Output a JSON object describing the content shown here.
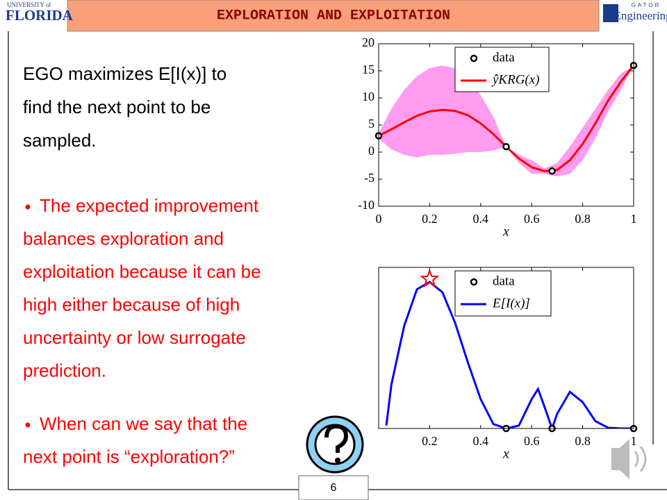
{
  "header": {
    "title": "EXPLORATION AND EXPLOITATION",
    "left_logo": [
      "UNIVERSITY of",
      "FLORIDA"
    ],
    "right_logo": [
      "GATOR",
      "Engineering"
    ]
  },
  "body": {
    "intro": [
      "EGO maximizes E[I(x)] to",
      "find the next point to be",
      "sampled."
    ],
    "bullets": [
      {
        "lines": [
          "The expected improvement",
          "balances exploration and",
          "exploitation because it can be",
          "high either because of high",
          "uncertainty or low surrogate",
          "prediction."
        ]
      },
      {
        "lines": [
          "When can we say that the",
          "next point is “exploration?”"
        ]
      }
    ]
  },
  "page_number": "6",
  "chart_data": [
    {
      "type": "line",
      "x_label": "x",
      "xlim": [
        0,
        1
      ],
      "xticks": [
        0,
        0.2,
        0.4,
        0.6,
        0.8,
        1
      ],
      "ylim": [
        -10,
        20
      ],
      "yticks": [
        -10,
        -5,
        0,
        5,
        10,
        15,
        20
      ],
      "legend": "upper right",
      "series": [
        {
          "name": "data",
          "type": "scatter",
          "color": "#000000",
          "x": [
            0,
            0.5,
            0.68,
            1
          ],
          "values": [
            3,
            1,
            -3.5,
            16
          ]
        },
        {
          "name": "ŷKRG(x)",
          "color": "#ff0000",
          "band_color": "#ff9cf0",
          "x": [
            0,
            0.05,
            0.1,
            0.15,
            0.2,
            0.25,
            0.3,
            0.35,
            0.4,
            0.45,
            0.5,
            0.55,
            0.6,
            0.65,
            0.7,
            0.75,
            0.8,
            0.85,
            0.9,
            0.95,
            1
          ],
          "values": [
            3,
            4.2,
            5.5,
            6.7,
            7.5,
            7.8,
            7.6,
            6.8,
            5.3,
            3.3,
            1,
            -1.2,
            -2.8,
            -3.5,
            -3.3,
            -1.5,
            1.5,
            5.3,
            9.5,
            13,
            16
          ],
          "upper": [
            3.5,
            8,
            11.5,
            14,
            15.5,
            16,
            15.5,
            13.5,
            10.5,
            6.5,
            1,
            -0.5,
            -1.5,
            -3,
            -2,
            1,
            4.5,
            8,
            11.5,
            14.5,
            16
          ],
          "lower": [
            2.5,
            0.5,
            -0.5,
            -1,
            -0.5,
            -0.5,
            -0.3,
            0,
            0,
            0.3,
            1,
            -2,
            -4,
            -4,
            -4.5,
            -4,
            -1.5,
            2.5,
            7.5,
            11.5,
            16
          ]
        }
      ]
    },
    {
      "type": "line",
      "x_label": "x",
      "xlim": [
        0,
        1
      ],
      "xticks": [
        0.2,
        0.4,
        0.6,
        0.8,
        1
      ],
      "ylim": [
        0,
        1.1
      ],
      "legend": "upper right",
      "series": [
        {
          "name": "data",
          "type": "scatter",
          "color": "#000000",
          "x": [
            0.5,
            0.68,
            1
          ],
          "values": [
            0,
            0,
            0
          ]
        },
        {
          "name": "E[I(x)]",
          "color": "#0000ff",
          "x": [
            0.03,
            0.05,
            0.1,
            0.15,
            0.2,
            0.25,
            0.3,
            0.35,
            0.4,
            0.45,
            0.5,
            0.55,
            0.6,
            0.625,
            0.65,
            0.68,
            0.7,
            0.75,
            0.8,
            0.85,
            0.9,
            0.95,
            1
          ],
          "values": [
            0.02,
            0.3,
            0.7,
            0.95,
            1,
            0.93,
            0.72,
            0.45,
            0.2,
            0.03,
            0,
            0.02,
            0.2,
            0.27,
            0.15,
            0,
            0.1,
            0.25,
            0.18,
            0.05,
            0.005,
            0,
            0
          ]
        }
      ],
      "star": {
        "x": 0.2,
        "y": 1.02,
        "color": "#ff0000"
      }
    }
  ]
}
